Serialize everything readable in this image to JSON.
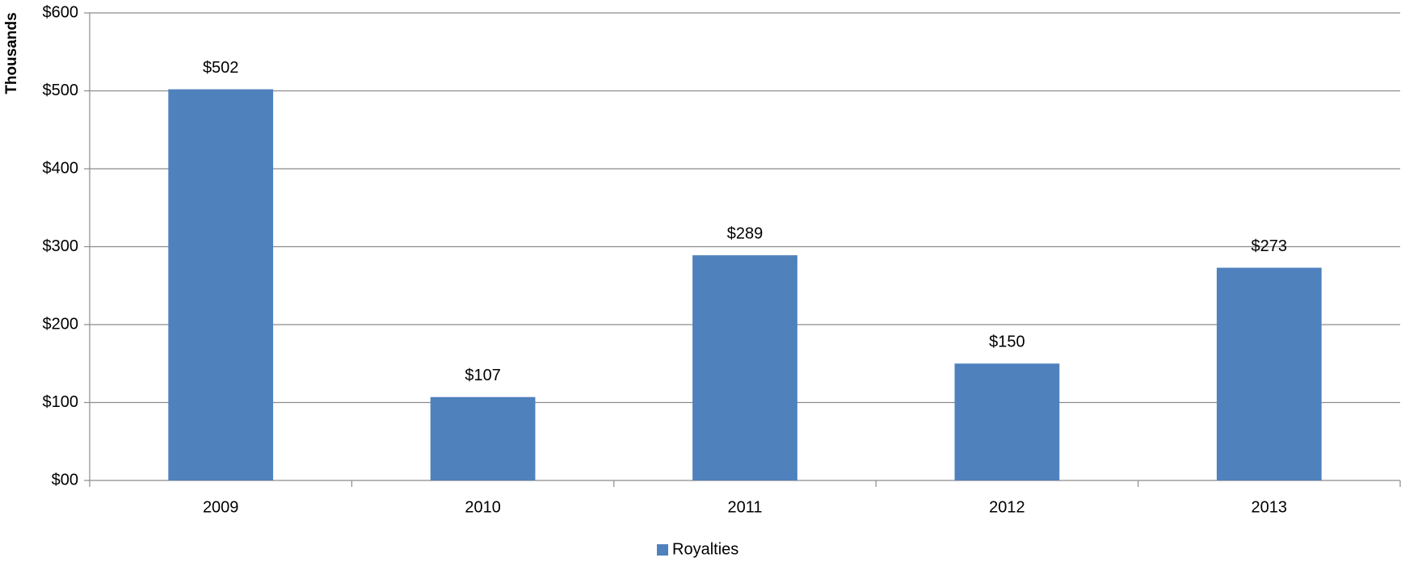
{
  "chart_data": {
    "type": "bar",
    "y_axis_label": "Thousands",
    "categories": [
      "2009",
      "2010",
      "2011",
      "2012",
      "2013"
    ],
    "series": [
      {
        "name": "Royalties",
        "color": "#4f81bd",
        "values": [
          502,
          107,
          289,
          150,
          273
        ],
        "value_labels": [
          "$502",
          "$107",
          "$289",
          "$150",
          "$273"
        ]
      }
    ],
    "ylim": [
      0,
      600
    ],
    "yticks": [
      {
        "value": 0,
        "label": "$00"
      },
      {
        "value": 100,
        "label": "$100"
      },
      {
        "value": 200,
        "label": "$200"
      },
      {
        "value": 300,
        "label": "$300"
      },
      {
        "value": 400,
        "label": "$400"
      },
      {
        "value": 500,
        "label": "$500"
      },
      {
        "value": 600,
        "label": "$600"
      }
    ],
    "grid": true,
    "legend": "bottom"
  }
}
